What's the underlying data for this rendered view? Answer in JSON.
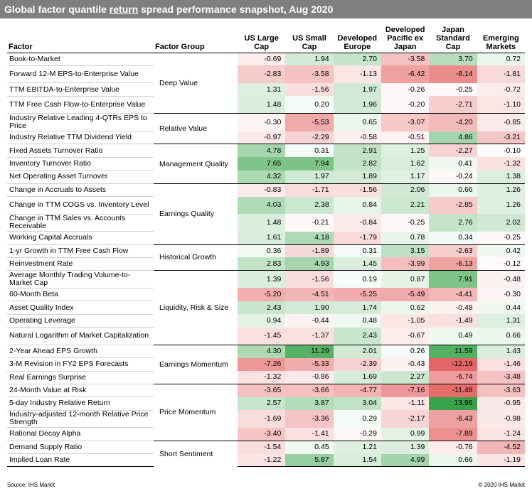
{
  "title": {
    "prefix": "Global factor quantile ",
    "underlined": "return",
    "suffix": " spread performance snapshot, Aug 2020"
  },
  "headers": {
    "factor": "Factor",
    "group": "Factor Group",
    "markets": [
      "US Large Cap",
      "US Small Cap",
      "Developed Europe",
      "Developed Pacific ex Japan",
      "Japan Standard Cap",
      "Emerging Markets"
    ]
  },
  "groups": [
    {
      "name": "Deep Value",
      "rows": [
        {
          "factor": "Book-to-Market",
          "values": [
            "-0.69",
            "1.94",
            "2.70",
            "-3.58",
            "3.70",
            "0.72"
          ]
        },
        {
          "factor": "Forward 12-M EPS-to-Enterprise Value",
          "values": [
            "-2.83",
            "-3.58",
            "-1.13",
            "-6.42",
            "-8.14",
            "-1.81"
          ]
        },
        {
          "factor": "TTM EBITDA-to-Enterprise Value",
          "values": [
            "1.31",
            "-1.56",
            "1.97",
            "-0.26",
            "-0.25",
            "-0.72"
          ]
        },
        {
          "factor": "TTM Free Cash Flow-to-Enterprise Value",
          "values": [
            "1.48",
            "0.20",
            "1.96",
            "-0.20",
            "-2.71",
            "-1.10"
          ]
        }
      ]
    },
    {
      "name": "Relative Value",
      "rows": [
        {
          "factor": "Industry Relative Leading 4-QTRs EPS to Price",
          "values": [
            "-0.30",
            "-5.53",
            "0.65",
            "-3.07",
            "-4.20",
            "-0.85"
          ]
        },
        {
          "factor": "Industry Relative TTM Dividend Yield",
          "values": [
            "-0.97",
            "-2.29",
            "-0.58",
            "-0.51",
            "4.86",
            "-3.21"
          ]
        }
      ]
    },
    {
      "name": "Management Quality",
      "rows": [
        {
          "factor": "Fixed Assets Turnover Ratio",
          "values": [
            "4.78",
            "0.31",
            "2.91",
            "1.25",
            "-2.27",
            "-0.10"
          ]
        },
        {
          "factor": "Inventory Turnover Ratio",
          "values": [
            "7.65",
            "7.94",
            "2.82",
            "1.62",
            "0.41",
            "-1.32"
          ]
        },
        {
          "factor": "Net Operating Asset Turnover",
          "values": [
            "4.32",
            "1.97",
            "1.89",
            "1.17",
            "-0.24",
            "1.38"
          ]
        }
      ]
    },
    {
      "name": "Earnings Quality",
      "rows": [
        {
          "factor": "Change in Accruals to Assets",
          "values": [
            "-0.83",
            "-1.71",
            "-1.56",
            "2.06",
            "0.66",
            "1.26"
          ]
        },
        {
          "factor": "Change in TTM COGS vs. Inventory Level",
          "values": [
            "4.03",
            "2.38",
            "0.84",
            "2.21",
            "-2.85",
            "1.26"
          ]
        },
        {
          "factor": "Change in TTM Sales vs. Accounts Receivable",
          "values": [
            "1.48",
            "-0.21",
            "-0.84",
            "-0.25",
            "2.76",
            "2.02"
          ]
        },
        {
          "factor": "Working Capital Accruals",
          "values": [
            "1.61",
            "4.18",
            "-1.79",
            "0.78",
            "0.34",
            "-0.25"
          ]
        }
      ]
    },
    {
      "name": "Historical Growth",
      "rows": [
        {
          "factor": "1-yr Growth in TTM Free Cash Flow",
          "values": [
            "0.36",
            "-1.89",
            "0.31",
            "3.15",
            "-2.63",
            "0.42"
          ]
        },
        {
          "factor": "Reinvestment Rate",
          "values": [
            "2.83",
            "4.93",
            "1.45",
            "-3.99",
            "-6.13",
            "-0.12"
          ]
        }
      ]
    },
    {
      "name": "Liquidity, Risk & Size",
      "rows": [
        {
          "factor": "Average Monthly Trading Volume-to-Market Cap",
          "values": [
            "1.39",
            "-1.56",
            "0.19",
            "0.87",
            "7.91",
            "-0.48"
          ]
        },
        {
          "factor": "60-Month Beta",
          "values": [
            "-5.20",
            "-4.51",
            "-5.25",
            "-5.49",
            "-4.41",
            "-0.30"
          ]
        },
        {
          "factor": "Asset Quality Index",
          "values": [
            "2.43",
            "1.90",
            "1.74",
            "0.62",
            "-0.48",
            "0.44"
          ]
        },
        {
          "factor": "Operating Leverage",
          "values": [
            "0.94",
            "-0.44",
            "0.48",
            "-1.05",
            "-1.49",
            "1.31"
          ]
        },
        {
          "factor": "Natural Logarithm of Market Capitalization",
          "values": [
            "-1.45",
            "-1.37",
            "2.43",
            "-0.67",
            "0.49",
            "0.66"
          ]
        }
      ]
    },
    {
      "name": "Earnings Momentum",
      "rows": [
        {
          "factor": "2-Year Ahead EPS Growth",
          "values": [
            "4.30",
            "11.29",
            "2.01",
            "0.26",
            "11.59",
            "1.43"
          ]
        },
        {
          "factor": "3-M Revision in FY2 EPS Forecasts",
          "values": [
            "-7.26",
            "-5.33",
            "-2.39",
            "-0.43",
            "-12.19",
            "-1.46"
          ]
        },
        {
          "factor": "Real Earnings Surprise",
          "values": [
            "-1.32",
            "-0.86",
            "1.69",
            "2.27",
            "-6.74",
            "-3.48"
          ]
        }
      ]
    },
    {
      "name": "Price Momentum",
      "rows": [
        {
          "factor": "24-Month Value at Risk",
          "values": [
            "-3.65",
            "-3.66",
            "-4.77",
            "-7.16",
            "-11.48",
            "-3.63"
          ]
        },
        {
          "factor": "5-day Industry Relative Return",
          "values": [
            "2.57",
            "3.87",
            "3.04",
            "-1.11",
            "13.96",
            "-0.95"
          ]
        },
        {
          "factor": "Industry-adjusted 12-month Relative Price Strength",
          "values": [
            "-1.69",
            "-3.36",
            "0.29",
            "-2.17",
            "-6.43",
            "-0.98"
          ]
        },
        {
          "factor": "Rational Decay Alpha",
          "values": [
            "-3.40",
            "-1.41",
            "-0.29",
            "0.99",
            "-7.89",
            "-1.24"
          ]
        }
      ]
    },
    {
      "name": "Short Sentiment",
      "rows": [
        {
          "factor": "Demand Supply Ratio",
          "values": [
            "-1.54",
            "0.45",
            "1.21",
            "1.39",
            "-0.76",
            "-4.52"
          ]
        },
        {
          "factor": "Implied Loan Rate",
          "values": [
            "-1.22",
            "5.87",
            "1.54",
            "4.99",
            "0.66",
            "-1.19"
          ]
        }
      ]
    }
  ],
  "colors": {
    "positive": "#2e9e3f",
    "negative": "#e04b4b",
    "neutral": "#ffffff"
  },
  "footer": {
    "source": "Source: IHS Markit",
    "copyright": "© 2020 IHS Markit"
  }
}
